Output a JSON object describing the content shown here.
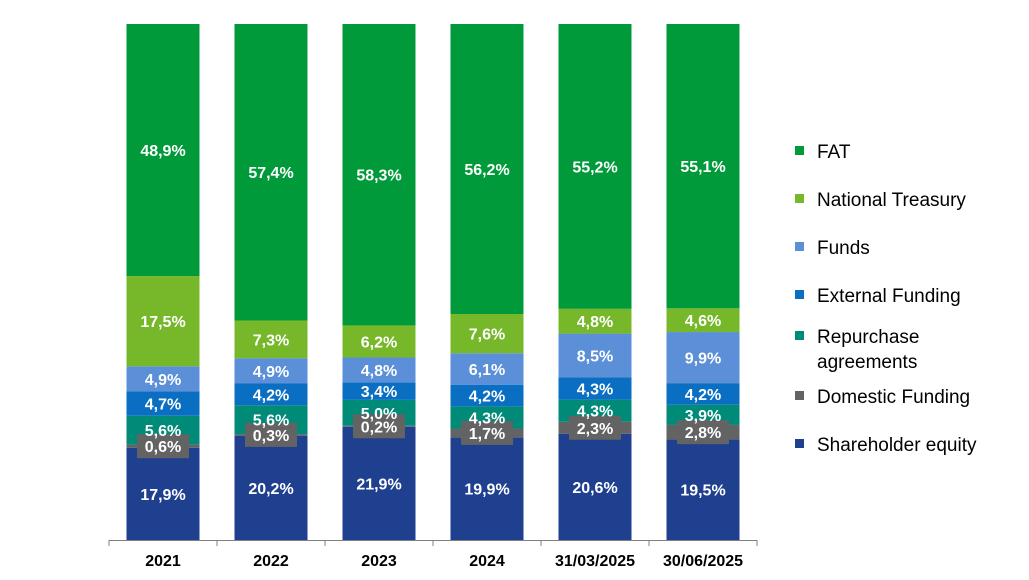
{
  "chart_data": {
    "type": "bar",
    "stacked": true,
    "normalized": true,
    "categories": [
      "2021",
      "2022",
      "2023",
      "2024",
      "31/03/2025",
      "30/06/2025"
    ],
    "series": [
      {
        "name": "Shareholder equity",
        "color": "#1f3f8f",
        "values": [
          17.9,
          20.2,
          21.9,
          19.9,
          20.6,
          19.5
        ],
        "labels": [
          "17,9%",
          "20,2%",
          "21,9%",
          "19,9%",
          "20,6%",
          "19,5%"
        ]
      },
      {
        "name": "Domestic Funding",
        "color": "#636363",
        "values": [
          0.6,
          0.3,
          0.2,
          1.7,
          2.3,
          2.8
        ],
        "labels": [
          "0,6%",
          "0,3%",
          "0,2%",
          "1,7%",
          "2,3%",
          "2,8%"
        ]
      },
      {
        "name": "Repurchase agreements",
        "color": "#008a78",
        "values": [
          5.6,
          5.6,
          5.0,
          4.3,
          4.3,
          3.9
        ],
        "labels": [
          "5,6%",
          "5,6%",
          "5,0%",
          "4,3%",
          "4,3%",
          "3,9%"
        ]
      },
      {
        "name": "External Funding",
        "color": "#0a6fc2",
        "values": [
          4.7,
          4.2,
          3.4,
          4.2,
          4.3,
          4.2
        ],
        "labels": [
          "4,7%",
          "4,2%",
          "3,4%",
          "4,2%",
          "4,3%",
          "4,2%"
        ]
      },
      {
        "name": "Funds",
        "color": "#5b8fd8",
        "values": [
          4.9,
          4.9,
          4.8,
          6.1,
          8.5,
          9.9
        ],
        "labels": [
          "4,9%",
          "4,9%",
          "4,8%",
          "6,1%",
          "8,5%",
          "9,9%"
        ]
      },
      {
        "name": "National Treasury",
        "color": "#76b82a",
        "values": [
          17.5,
          7.3,
          6.2,
          7.6,
          4.8,
          4.6
        ],
        "labels": [
          "17,5%",
          "7,3%",
          "6,2%",
          "7,6%",
          "4,8%",
          "4,6%"
        ]
      },
      {
        "name": "FAT",
        "color": "#009a3a",
        "values": [
          48.9,
          57.4,
          58.3,
          56.2,
          55.2,
          55.1
        ],
        "labels": [
          "48,9%",
          "57,4%",
          "58,3%",
          "56,2%",
          "55,2%",
          "55,1%"
        ]
      }
    ],
    "legend_position": "right",
    "legend_order": [
      "FAT",
      "National Treasury",
      "Funds",
      "External Funding",
      "Repurchase agreements",
      "Domestic Funding",
      "Shareholder equity"
    ],
    "grid": false
  }
}
